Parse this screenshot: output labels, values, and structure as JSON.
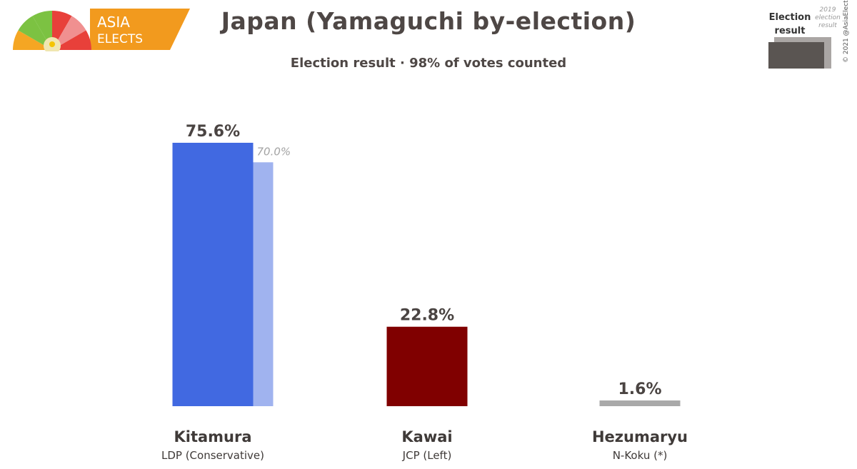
{
  "header": {
    "title": "Japan (Yamaguchi by-election)",
    "subtitle": "Election result · 98% of votes counted"
  },
  "logo": {
    "line1": "ASIA",
    "line2": "ELECTS",
    "colors": [
      "#f5a623",
      "#7cc242",
      "#e8403a",
      "#f09090",
      "#f29a1e"
    ]
  },
  "legend": {
    "current_label_1": "Election",
    "current_label_2": "result",
    "previous_label_1": "2019",
    "previous_label_2": "election",
    "previous_label_3": "result",
    "current_color": "#5a5552",
    "previous_color": "#aaa6a4"
  },
  "copyright": "© 2021 @AsiaElects",
  "chart_data": {
    "type": "bar",
    "ylim": [
      0,
      80
    ],
    "categories": [
      "Kitamura",
      "Kawai",
      "Hezumaryu"
    ],
    "parties": [
      "LDP (Conservative)",
      "JCP (Left)",
      "N-Koku (*)"
    ],
    "series": [
      {
        "values": [
          75.6,
          22.8,
          1.6
        ],
        "labels": [
          "75.6%",
          "22.8%",
          "1.6%"
        ],
        "colors": [
          "#4169e1",
          "#800000",
          "#a9a9a9"
        ]
      },
      {
        "values": [
          70.0,
          null,
          null
        ],
        "labels": [
          "70.0%",
          "",
          ""
        ],
        "colors": [
          "#a0b3ef",
          "",
          ""
        ]
      }
    ]
  }
}
